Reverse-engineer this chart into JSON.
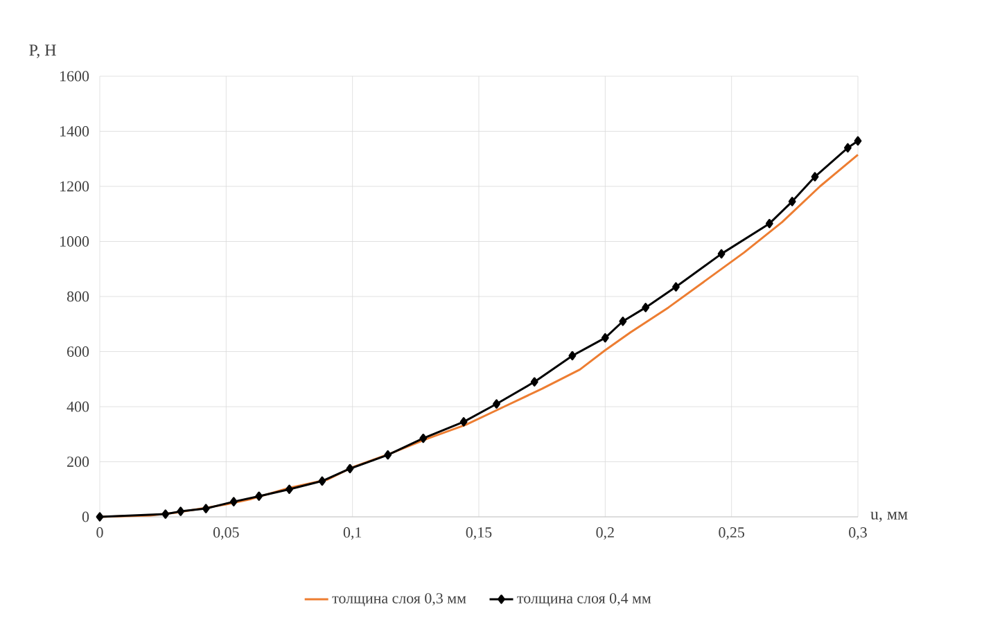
{
  "chart_data": {
    "type": "line",
    "xlabel": "u, мм",
    "ylabel": "P, Н",
    "legend": "bottom",
    "grid": true,
    "xlim": [
      0,
      0.3
    ],
    "ylim": [
      0,
      1600
    ],
    "xticks": [
      0,
      {
        "value": 0.05,
        "label": "0,05"
      },
      {
        "value": 0.1,
        "label": "0,1"
      },
      {
        "value": 0.15,
        "label": "0,15"
      },
      {
        "value": 0.2,
        "label": "0,2"
      },
      {
        "value": 0.25,
        "label": "0,25"
      },
      {
        "value": 0.3,
        "label": "0,3"
      }
    ],
    "yticks": [
      0,
      200,
      400,
      600,
      800,
      1000,
      1200,
      1400,
      1600
    ],
    "series": [
      {
        "name": "толщина слоя 0,3 мм",
        "color": "#ed7d31",
        "marker": "none",
        "x": [
          0,
          0.02,
          0.03,
          0.05,
          0.06,
          0.075,
          0.09,
          0.1,
          0.115,
          0.13,
          0.145,
          0.16,
          0.175,
          0.19,
          0.2,
          0.21,
          0.225,
          0.24,
          0.255,
          0.27,
          0.285,
          0.3
        ],
        "values": [
          0,
          5,
          15,
          45,
          65,
          105,
          135,
          180,
          230,
          285,
          335,
          400,
          465,
          535,
          605,
          670,
          760,
          860,
          960,
          1070,
          1200,
          1315
        ]
      },
      {
        "name": "толщина слоя 0,4 мм",
        "color": "#000000",
        "marker": "diamond",
        "x": [
          0,
          0.026,
          0.032,
          0.042,
          0.053,
          0.063,
          0.075,
          0.088,
          0.099,
          0.114,
          0.128,
          0.144,
          0.157,
          0.172,
          0.187,
          0.2,
          0.207,
          0.216,
          0.228,
          0.246,
          0.265,
          0.274,
          0.283,
          0.296,
          0.3
        ],
        "values": [
          0,
          10,
          20,
          30,
          55,
          75,
          100,
          130,
          175,
          225,
          285,
          345,
          410,
          490,
          585,
          650,
          710,
          760,
          835,
          955,
          1065,
          1145,
          1235,
          1340,
          1365
        ]
      }
    ]
  }
}
